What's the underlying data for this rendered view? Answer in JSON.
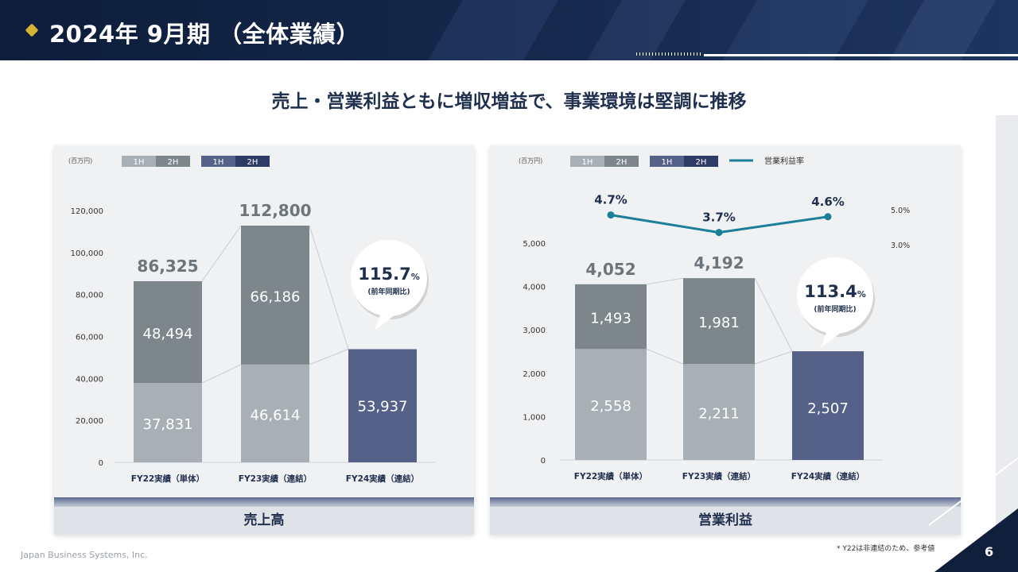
{
  "header": {
    "title": "2024年 9月期 （全体業績）"
  },
  "headline": "売上・営業利益ともに増収増益で、事業環境は堅調に推移",
  "colors": {
    "navy": "#1f2f4e",
    "gray_light": "#a9b0b5",
    "gray_dark": "#7d868b",
    "slate": "#56618a",
    "navy_dark": "#2e3b66",
    "line": "#1b7f98"
  },
  "charts": [
    {
      "footer_label": "売上高",
      "unit": "(百万円)",
      "legend": [
        {
          "label": "1H",
          "color": "#a9b0b5"
        },
        {
          "label": "2H",
          "color": "#7d868b"
        },
        {
          "label": "1H",
          "color": "#56618a"
        },
        {
          "label": "2H",
          "color": "#2e3b66"
        }
      ],
      "callout": {
        "value": "115.7",
        "unit": "%",
        "sub": "(前年同期比)"
      }
    },
    {
      "footer_label": "営業利益",
      "unit": "(百万円)",
      "legend": [
        {
          "label": "1H",
          "color": "#a9b0b5"
        },
        {
          "label": "2H",
          "color": "#7d868b"
        },
        {
          "label": "1H",
          "color": "#56618a"
        },
        {
          "label": "2H",
          "color": "#2e3b66"
        }
      ],
      "line_legend": "営業利益率",
      "callout": {
        "value": "113.4",
        "unit": "%",
        "sub": "(前年同期比)"
      }
    }
  ],
  "chart_data": [
    {
      "type": "bar",
      "categories": [
        "FY22実績（単体）",
        "FY23実績（連結）",
        "FY24実績（連結）"
      ],
      "series": [
        {
          "name": "1H",
          "values": [
            37831,
            46614,
            53937
          ]
        },
        {
          "name": "2H",
          "values": [
            48494,
            66186,
            null
          ]
        }
      ],
      "segment_labels": [
        [
          "37,831",
          "48,494"
        ],
        [
          "46,614",
          "66,186"
        ],
        [
          "53,937",
          null
        ]
      ],
      "totals": [
        86325,
        112800,
        null
      ],
      "total_labels": [
        "86,325",
        "112,800",
        null
      ],
      "yticks": [
        "0",
        "20,000",
        "40,000",
        "60,000",
        "80,000",
        "100,000",
        "120,000"
      ],
      "ytick_values": [
        0,
        20000,
        40000,
        60000,
        80000,
        100000,
        120000
      ],
      "ylim": [
        0,
        120000
      ]
    },
    {
      "type": "bar",
      "categories": [
        "FY22実績（単体）",
        "FY23実績（連結）",
        "FY24実績（連結）"
      ],
      "series": [
        {
          "name": "1H",
          "values": [
            2558,
            2211,
            2507
          ]
        },
        {
          "name": "2H",
          "values": [
            1493,
            1981,
            null
          ]
        }
      ],
      "segment_labels": [
        [
          "2,558",
          "1,493"
        ],
        [
          "2,211",
          "1,981"
        ],
        [
          "2,507",
          null
        ]
      ],
      "totals": [
        4052,
        4192,
        null
      ],
      "total_labels": [
        "4,052",
        "4,192",
        null
      ],
      "yticks": [
        "0",
        "1,000",
        "2,000",
        "3,000",
        "4,000",
        "5,000"
      ],
      "ytick_values": [
        0,
        1000,
        2000,
        3000,
        4000,
        5000
      ],
      "ylim": [
        0,
        5000
      ],
      "margin_line": {
        "name": "営業利益率",
        "values": [
          4.7,
          3.7,
          4.6
        ],
        "labels": [
          "4.7%",
          "3.7%",
          "4.6%"
        ],
        "yticks": [
          "3.0%",
          "5.0%"
        ],
        "ytick_values": [
          3.0,
          5.0
        ]
      }
    }
  ],
  "footer": {
    "company": "Japan Business Systems, Inc.",
    "footnote": "* Y22は非連結のため、参考値",
    "page_number": "6"
  }
}
